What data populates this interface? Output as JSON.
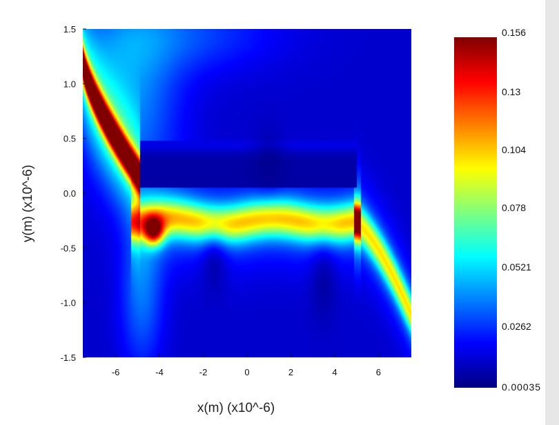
{
  "chart_data": {
    "type": "heatmap",
    "title": "",
    "xlabel": "x(m) (x10^-6)",
    "ylabel": "y(m) (x10^-6)",
    "xlim": [
      -7.5,
      7.5
    ],
    "ylim": [
      -1.5,
      1.5
    ],
    "x_ticks": [
      -6,
      -4,
      -2,
      0,
      2,
      4,
      6
    ],
    "x_tick_labels": [
      "-6",
      "-4",
      "-2",
      "0",
      "2",
      "4",
      "6"
    ],
    "y_ticks": [
      1.5,
      1.0,
      0.5,
      0.0,
      -0.5,
      -1.0,
      -1.5
    ],
    "y_tick_labels": [
      "1.5",
      "1.0",
      "0.5",
      "0.0",
      "-0.5",
      "-1.0",
      "-1.5"
    ],
    "colormap": "jet",
    "colorbar": {
      "min": 0.00035,
      "max": 0.156,
      "ticks": [
        0.156,
        0.13,
        0.104,
        0.078,
        0.0521,
        0.0262,
        0.00035
      ],
      "tick_labels": [
        "0.156",
        "0.13",
        "0.104",
        "0.078",
        "0.0521",
        "0.0262",
        "0.00035"
      ]
    },
    "dark_rectangle": {
      "x": [
        -4.9,
        5.0
      ],
      "y": [
        0.05,
        0.48
      ]
    },
    "features": [
      {
        "kind": "hot_band",
        "x": [
          -7.5,
          -5.0
        ],
        "y_top": 1.2,
        "y_end": 0.15,
        "peak": 0.15
      },
      {
        "kind": "guided_band",
        "x": [
          -5.0,
          5.0
        ],
        "y_center": -0.25,
        "peak": 0.085
      },
      {
        "kind": "hot_spot",
        "x": -4.3,
        "y": -0.35,
        "peak": 0.12
      },
      {
        "kind": "bending_tail",
        "x": [
          5.0,
          7.5
        ],
        "y_end": -1.1,
        "peak": 0.075
      }
    ]
  }
}
